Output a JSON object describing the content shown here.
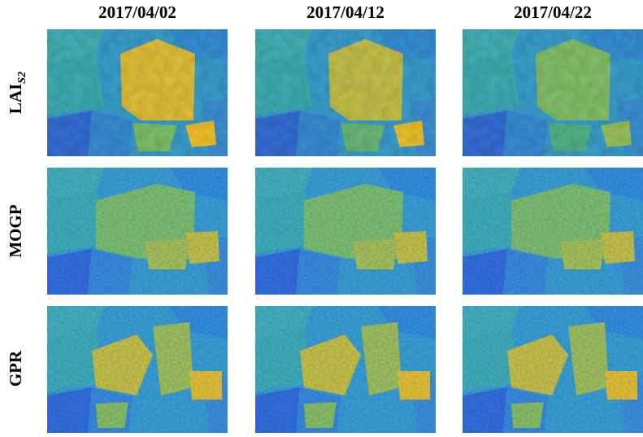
{
  "columns": [
    "2017/04/02",
    "2017/04/12",
    "2017/04/22"
  ],
  "rows": [
    {
      "label": "LAI",
      "subscript": "S2"
    },
    {
      "label": "MOGP"
    },
    {
      "label": "GPR"
    }
  ]
}
